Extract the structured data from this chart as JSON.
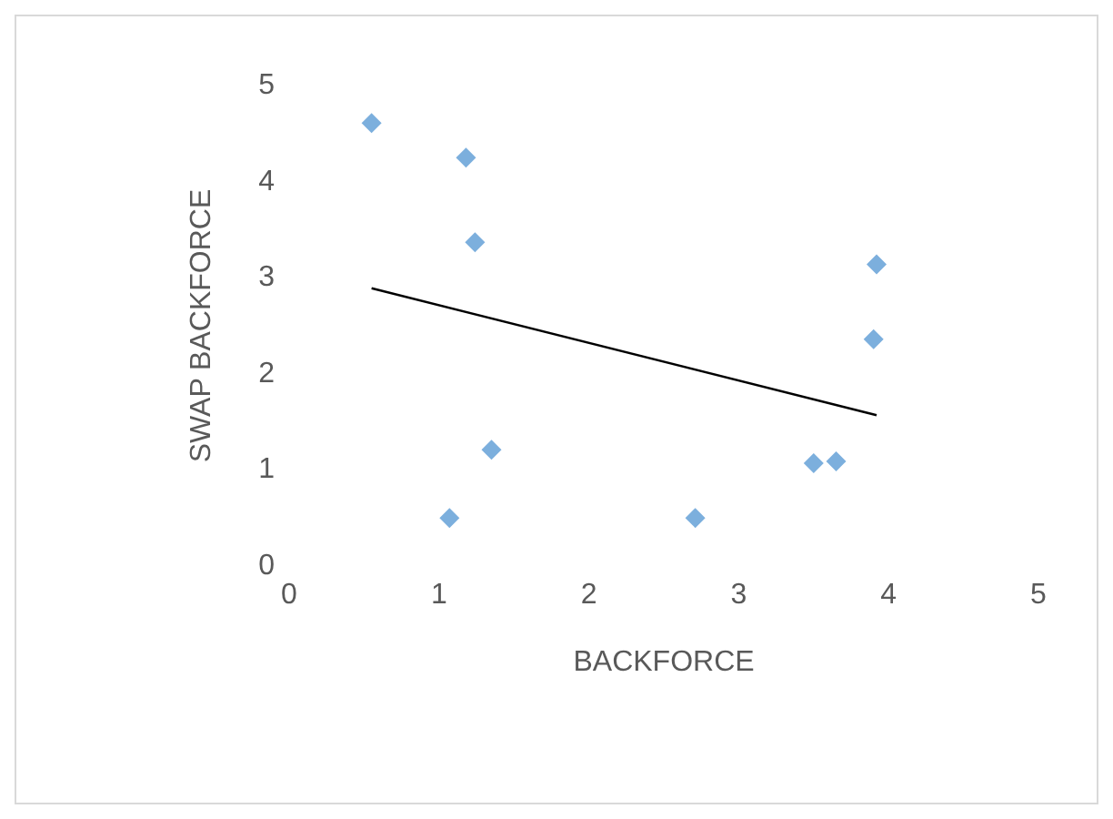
{
  "chart_data": {
    "type": "scatter",
    "xlabel": "BACKFORCE",
    "ylabel": "SWAP BACKFORCE",
    "xlim": [
      0,
      5
    ],
    "ylim": [
      0,
      5
    ],
    "xticks": [
      0,
      1,
      2,
      3,
      4,
      5
    ],
    "yticks": [
      0,
      1,
      2,
      3,
      4,
      5
    ],
    "marker": "diamond",
    "series": [
      {
        "color": "#5b9bd5",
        "x": [
          0.55,
          1.18,
          1.24,
          1.35,
          1.07,
          2.71,
          3.5,
          3.65,
          3.9,
          3.92
        ],
        "values": [
          4.61,
          4.25,
          3.37,
          1.21,
          0.5,
          0.5,
          1.07,
          1.09,
          2.36,
          3.14
        ]
      },
      {
        "type": "line",
        "color": "#000000",
        "marker": "none",
        "line_style": "solid",
        "x": [
          0.55,
          3.92
        ],
        "values": [
          2.89,
          1.57
        ]
      }
    ]
  }
}
